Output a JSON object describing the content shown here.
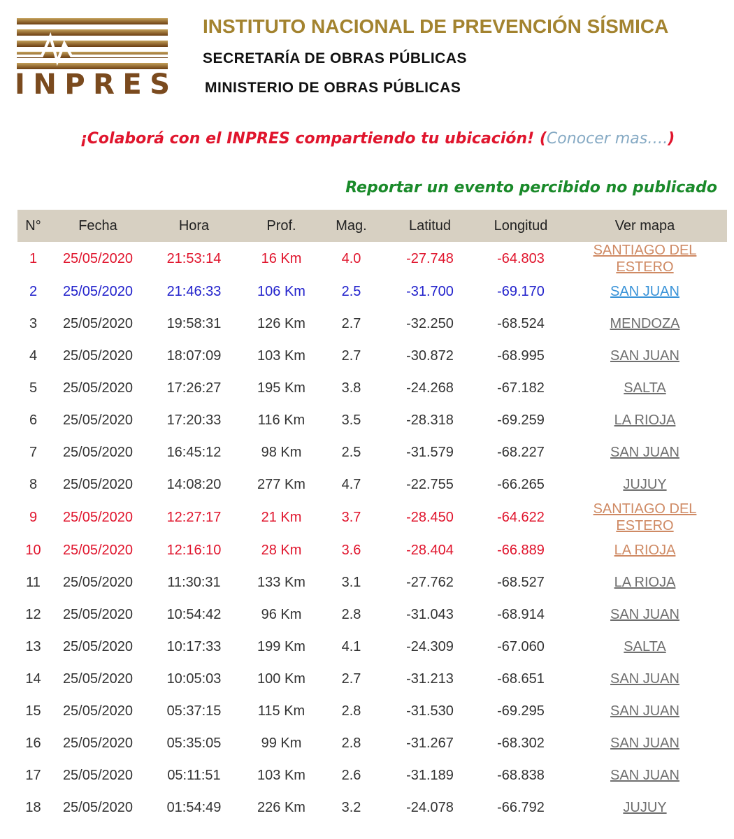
{
  "header": {
    "logo": "INPRES",
    "title": "INSTITUTO NACIONAL DE PREVENCIÓN SÍSMICA",
    "subtitle_1": "SECRETARÍA DE OBRAS PÚBLICAS",
    "subtitle_2": "MINISTERIO DE OBRAS PÚBLICAS"
  },
  "collab": {
    "text": "¡Colaborá con el INPRES compartiendo tu ubicación!",
    "open": "(",
    "link": "Conocer mas….",
    "close": ")"
  },
  "report_link": "Reportar un evento percibido no publicado",
  "table": {
    "columns": [
      "N°",
      "Fecha",
      "Hora",
      "Prof.",
      "Mag.",
      "Latitud",
      "Longitud",
      "Ver mapa"
    ],
    "rows": [
      [
        "1",
        "25/05/2020",
        "21:53:14",
        "16 Km",
        "4.0",
        "-27.748",
        "-64.803",
        "SANTIAGO DEL ESTERO"
      ],
      [
        "2",
        "25/05/2020",
        "21:46:33",
        "106 Km",
        "2.5",
        "-31.700",
        "-69.170",
        "SAN JUAN"
      ],
      [
        "3",
        "25/05/2020",
        "19:58:31",
        "126 Km",
        "2.7",
        "-32.250",
        "-68.524",
        "MENDOZA"
      ],
      [
        "4",
        "25/05/2020",
        "18:07:09",
        "103 Km",
        "2.7",
        "-30.872",
        "-68.995",
        "SAN JUAN"
      ],
      [
        "5",
        "25/05/2020",
        "17:26:27",
        "195 Km",
        "3.8",
        "-24.268",
        "-67.182",
        "SALTA"
      ],
      [
        "6",
        "25/05/2020",
        "17:20:33",
        "116 Km",
        "3.5",
        "-28.318",
        "-69.259",
        "LA RIOJA"
      ],
      [
        "7",
        "25/05/2020",
        "16:45:12",
        "98 Km",
        "2.5",
        "-31.579",
        "-68.227",
        "SAN JUAN"
      ],
      [
        "8",
        "25/05/2020",
        "14:08:20",
        "277 Km",
        "4.7",
        "-22.755",
        "-66.265",
        "JUJUY"
      ],
      [
        "9",
        "25/05/2020",
        "12:27:17",
        "21 Km",
        "3.7",
        "-28.450",
        "-64.622",
        "SANTIAGO DEL ESTERO"
      ],
      [
        "10",
        "25/05/2020",
        "12:16:10",
        "28 Km",
        "3.6",
        "-28.404",
        "-66.889",
        "LA RIOJA"
      ],
      [
        "11",
        "25/05/2020",
        "11:30:31",
        "133 Km",
        "3.1",
        "-27.762",
        "-68.527",
        "LA RIOJA"
      ],
      [
        "12",
        "25/05/2020",
        "10:54:42",
        "96 Km",
        "2.8",
        "-31.043",
        "-68.914",
        "SAN JUAN"
      ],
      [
        "13",
        "25/05/2020",
        "10:17:33",
        "199 Km",
        "4.1",
        "-24.309",
        "-67.060",
        "SALTA"
      ],
      [
        "14",
        "25/05/2020",
        "10:05:03",
        "100 Km",
        "2.7",
        "-31.213",
        "-68.651",
        "SAN JUAN"
      ],
      [
        "15",
        "25/05/2020",
        "05:37:15",
        "115 Km",
        "2.8",
        "-31.530",
        "-69.295",
        "SAN JUAN"
      ],
      [
        "16",
        "25/05/2020",
        "05:35:05",
        "99 Km",
        "2.8",
        "-31.267",
        "-68.302",
        "SAN JUAN"
      ],
      [
        "17",
        "25/05/2020",
        "05:11:51",
        "103 Km",
        "2.6",
        "-31.189",
        "-68.838",
        "SAN JUAN"
      ],
      [
        "18",
        "25/05/2020",
        "01:54:49",
        "226 Km",
        "3.2",
        "-24.078",
        "-66.792",
        "JUJUY"
      ]
    ],
    "row_colors": [
      "#e0152d",
      "#2222cc",
      "#333333",
      "#333333",
      "#333333",
      "#333333",
      "#333333",
      "#333333",
      "#e0152d",
      "#e0152d",
      "#333333",
      "#333333",
      "#333333",
      "#333333",
      "#333333",
      "#333333",
      "#333333",
      "#333333"
    ],
    "link_colors": [
      "#cf8a64",
      "#3a93d8",
      "#6f6f6f",
      "#6f6f6f",
      "#6f6f6f",
      "#6f6f6f",
      "#6f6f6f",
      "#6f6f6f",
      "#cf8a64",
      "#cf8a64",
      "#6f6f6f",
      "#6f6f6f",
      "#6f6f6f",
      "#6f6f6f",
      "#6f6f6f",
      "#6f6f6f",
      "#6f6f6f",
      "#6f6f6f"
    ]
  }
}
